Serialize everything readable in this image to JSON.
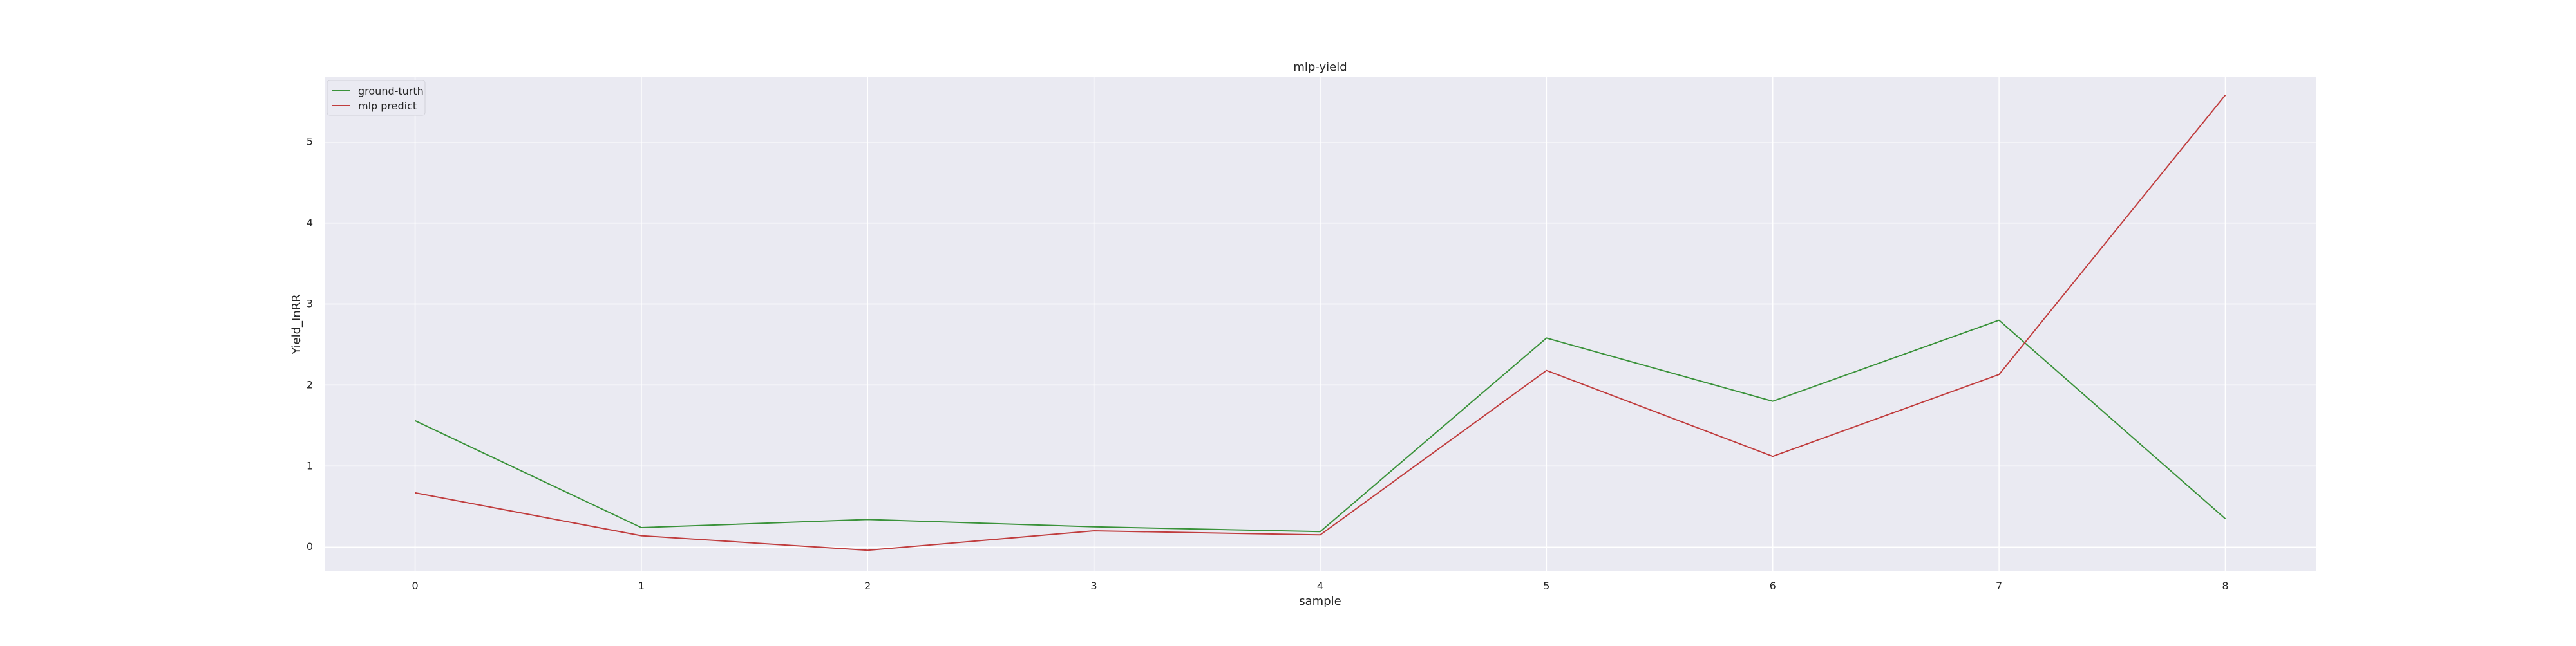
{
  "chart_data": {
    "type": "line",
    "title": "mlp-yield",
    "xlabel": "sample",
    "ylabel": "Yield_InRR",
    "x": [
      0,
      1,
      2,
      3,
      4,
      5,
      6,
      7,
      8
    ],
    "xticks": [
      "0",
      "1",
      "2",
      "3",
      "4",
      "5",
      "6",
      "7",
      "8"
    ],
    "yticks": [
      "0",
      "1",
      "2",
      "3",
      "4",
      "5"
    ],
    "xlim": [
      -0.4,
      8.4
    ],
    "ylim": [
      -0.3,
      5.8
    ],
    "grid": true,
    "legend_position": "top-left",
    "series": [
      {
        "name": "ground-turth",
        "color": "#3a923a",
        "values": [
          1.56,
          0.24,
          0.34,
          0.25,
          0.19,
          2.58,
          1.8,
          2.8,
          0.35
        ]
      },
      {
        "name": "mlp predict",
        "color": "#c03d3e",
        "values": [
          0.67,
          0.14,
          -0.04,
          0.2,
          0.15,
          2.18,
          1.12,
          2.13,
          5.58
        ]
      }
    ]
  }
}
